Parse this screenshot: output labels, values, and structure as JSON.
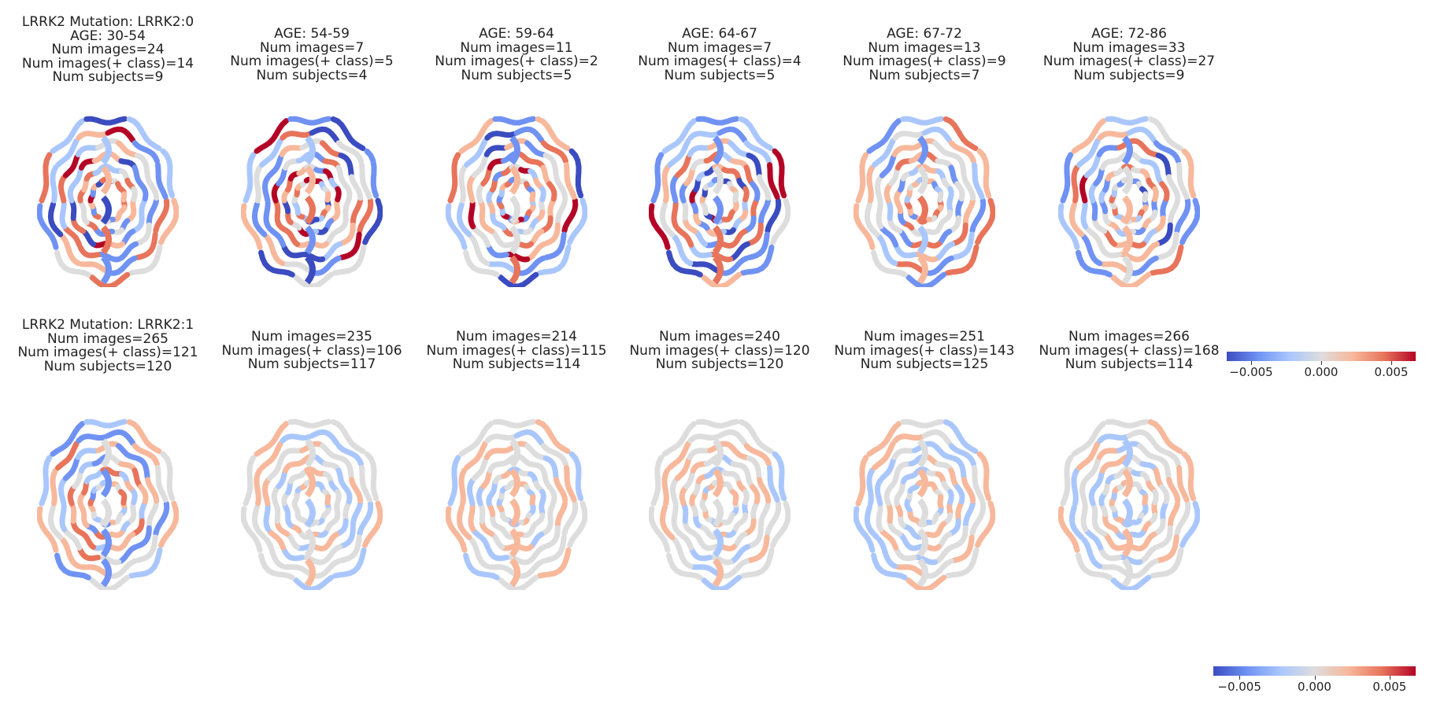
{
  "colors": {
    "cmap": [
      "#3b4cc0",
      "#6f92f3",
      "#aac7fd",
      "#dddddd",
      "#f7b89c",
      "#e7745b",
      "#b40426"
    ]
  },
  "rows": [
    {
      "mutation_label": "LRRK2 Mutation: LRRK2:0",
      "panels": [
        {
          "age": "AGE: 30-54",
          "num_images": "Num images=24",
          "num_pos": "Num images(+ class)=14",
          "num_subjects": "Num subjects=9",
          "intensity": 1.0
        },
        {
          "age": "AGE: 54-59",
          "num_images": "Num images=7",
          "num_pos": "Num images(+ class)=5",
          "num_subjects": "Num subjects=4",
          "intensity": 1.0
        },
        {
          "age": "AGE: 59-64",
          "num_images": "Num images=11",
          "num_pos": "Num images(+ class)=2",
          "num_subjects": "Num subjects=5",
          "intensity": 1.0
        },
        {
          "age": "AGE: 64-67",
          "num_images": "Num images=7",
          "num_pos": "Num images(+ class)=4",
          "num_subjects": "Num subjects=5",
          "intensity": 1.0
        },
        {
          "age": "AGE: 67-72",
          "num_images": "Num images=13",
          "num_pos": "Num images(+ class)=9",
          "num_subjects": "Num subjects=7",
          "intensity": 0.8
        },
        {
          "age": "AGE: 72-86",
          "num_images": "Num images=33",
          "num_pos": "Num images(+ class)=27",
          "num_subjects": "Num subjects=9",
          "intensity": 0.9
        }
      ],
      "colorbar": {
        "ticks": [
          "−0.005",
          "0.000",
          "0.005"
        ]
      }
    },
    {
      "mutation_label": "LRRK2 Mutation: LRRK2:1",
      "panels": [
        {
          "age": "",
          "num_images": "Num images=265",
          "num_pos": "Num images(+ class)=121",
          "num_subjects": "Num subjects=120",
          "intensity": 0.75
        },
        {
          "age": "",
          "num_images": "Num images=235",
          "num_pos": "Num images(+ class)=106",
          "num_subjects": "Num subjects=117",
          "intensity": 0.35
        },
        {
          "age": "",
          "num_images": "Num images=214",
          "num_pos": "Num images(+ class)=115",
          "num_subjects": "Num subjects=114",
          "intensity": 0.35
        },
        {
          "age": "",
          "num_images": "Num images=240",
          "num_pos": "Num images(+ class)=120",
          "num_subjects": "Num subjects=120",
          "intensity": 0.35
        },
        {
          "age": "",
          "num_images": "Num images=251",
          "num_pos": "Num images(+ class)=143",
          "num_subjects": "Num subjects=125",
          "intensity": 0.4
        },
        {
          "age": "",
          "num_images": "Num images=266",
          "num_pos": "Num images(+ class)=168",
          "num_subjects": "Num subjects=114",
          "intensity": 0.4
        }
      ],
      "colorbar": {
        "ticks": [
          "−0.005",
          "0.000",
          "0.005"
        ]
      }
    }
  ]
}
